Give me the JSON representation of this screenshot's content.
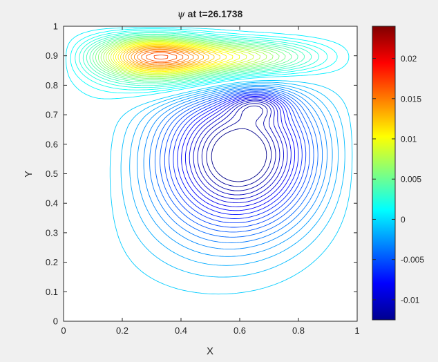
{
  "chart_data": {
    "type": "contour",
    "title_symbol": "ψ",
    "title_rest": " at t=26.1738",
    "xlabel": "X",
    "ylabel": "Y",
    "xlim": [
      0,
      1
    ],
    "ylim": [
      0,
      1
    ],
    "grid": false,
    "x_ticks": [
      {
        "value": 0,
        "label": "0"
      },
      {
        "value": 0.2,
        "label": "0.2"
      },
      {
        "value": 0.4,
        "label": "0.4"
      },
      {
        "value": 0.6,
        "label": "0.6"
      },
      {
        "value": 0.8,
        "label": "0.8"
      },
      {
        "value": 1,
        "label": "1"
      }
    ],
    "y_ticks": [
      {
        "value": 0,
        "label": "0"
      },
      {
        "value": 0.1,
        "label": "0.1"
      },
      {
        "value": 0.2,
        "label": "0.2"
      },
      {
        "value": 0.3,
        "label": "0.3"
      },
      {
        "value": 0.4,
        "label": "0.4"
      },
      {
        "value": 0.5,
        "label": "0.5"
      },
      {
        "value": 0.6,
        "label": "0.6"
      },
      {
        "value": 0.7,
        "label": "0.7"
      },
      {
        "value": 0.8,
        "label": "0.8"
      },
      {
        "value": 0.9,
        "label": "0.9"
      },
      {
        "value": 1,
        "label": "1"
      }
    ],
    "colorbar": {
      "colormap": "jet",
      "min": -0.0125,
      "max": 0.024,
      "ticks": [
        {
          "value": -0.01,
          "label": "-0.01"
        },
        {
          "value": -0.005,
          "label": "-0.005"
        },
        {
          "value": 0,
          "label": "0"
        },
        {
          "value": 0.005,
          "label": "0.005"
        },
        {
          "value": 0.01,
          "label": "0.01"
        },
        {
          "value": 0.015,
          "label": "0.015"
        },
        {
          "value": 0.02,
          "label": "0.02"
        }
      ]
    },
    "features": [
      {
        "kind": "primary-vortex",
        "sign": "positive",
        "x": 0.27,
        "y": 0.91,
        "peak": 0.024
      },
      {
        "kind": "secondary-vortex",
        "sign": "negative",
        "x": 0.625,
        "y": 0.585,
        "peak": -0.0125
      },
      {
        "kind": "tertiary-vortex",
        "sign": "negative",
        "x": 0.665,
        "y": 0.73,
        "peak": -0.011
      }
    ]
  },
  "colors": {
    "figure_background": "#f0f0f0",
    "axes_background": "#ffffff",
    "axis_color": "#262626",
    "text_color": "#262626"
  }
}
